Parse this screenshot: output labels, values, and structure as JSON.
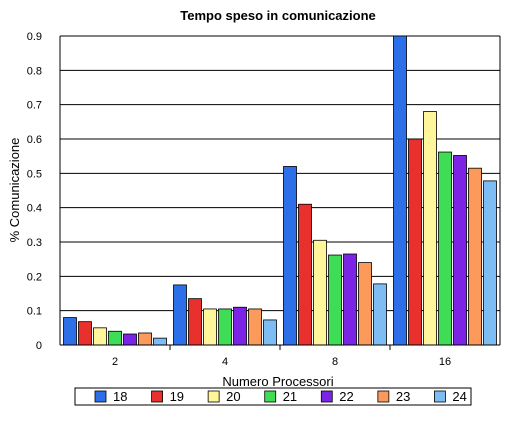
{
  "chart_data": {
    "type": "bar",
    "title": "Tempo speso in comunicazione",
    "xlabel": "Numero Processori",
    "ylabel": "% Comunicazione",
    "categories": [
      "2",
      "4",
      "8",
      "16"
    ],
    "ylim": [
      0,
      0.9
    ],
    "yticks": [
      "0",
      "0.1",
      "0.2",
      "0.3",
      "0.4",
      "0.5",
      "0.6",
      "0.7",
      "0.8",
      "0.9"
    ],
    "grid": true,
    "legend_position": "bottom",
    "series": [
      {
        "name": "18",
        "color": "#2d6fe8",
        "values": [
          0.08,
          0.175,
          0.52,
          0.9
        ]
      },
      {
        "name": "19",
        "color": "#e8302d",
        "values": [
          0.068,
          0.135,
          0.41,
          0.6
        ]
      },
      {
        "name": "20",
        "color": "#fff59a",
        "values": [
          0.05,
          0.105,
          0.305,
          0.68
        ]
      },
      {
        "name": "21",
        "color": "#3fdc55",
        "values": [
          0.04,
          0.105,
          0.262,
          0.562
        ]
      },
      {
        "name": "22",
        "color": "#7b24e6",
        "values": [
          0.032,
          0.11,
          0.265,
          0.552
        ]
      },
      {
        "name": "23",
        "color": "#fb9a5a",
        "values": [
          0.035,
          0.105,
          0.24,
          0.515
        ]
      },
      {
        "name": "24",
        "color": "#7dbdf3",
        "values": [
          0.02,
          0.073,
          0.178,
          0.478
        ]
      }
    ]
  }
}
